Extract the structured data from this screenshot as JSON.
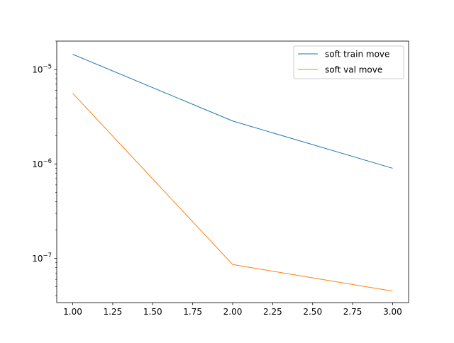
{
  "chart_data": {
    "type": "line",
    "title": "",
    "xlabel": "",
    "ylabel": "",
    "yscale": "log",
    "xlim": [
      0.9,
      3.1
    ],
    "ylim": [
      3.4e-08,
      2e-05
    ],
    "grid": false,
    "legend_position": "top-right",
    "x_ticks": [
      {
        "value": 1.0,
        "label": "1.00"
      },
      {
        "value": 1.25,
        "label": "1.25"
      },
      {
        "value": 1.5,
        "label": "1.50"
      },
      {
        "value": 1.75,
        "label": "1.75"
      },
      {
        "value": 2.0,
        "label": "2.00"
      },
      {
        "value": 2.25,
        "label": "2.25"
      },
      {
        "value": 2.5,
        "label": "2.50"
      },
      {
        "value": 2.75,
        "label": "2.75"
      },
      {
        "value": 3.0,
        "label": "3.00"
      }
    ],
    "y_ticks": [
      {
        "value": 1e-05,
        "base": "10",
        "exp": "−5"
      },
      {
        "value": 1e-06,
        "base": "10",
        "exp": "−6"
      },
      {
        "value": 1e-07,
        "base": "10",
        "exp": "−7"
      }
    ],
    "series": [
      {
        "name": "soft train move",
        "color": "#1f77b4",
        "x": [
          1,
          2,
          3
        ],
        "y": [
          1.45e-05,
          2.85e-06,
          9e-07
        ]
      },
      {
        "name": "soft val move",
        "color": "#ff7f0e",
        "x": [
          1,
          2,
          3
        ],
        "y": [
          5.6e-06,
          8.6e-08,
          4.5e-08
        ]
      }
    ]
  }
}
